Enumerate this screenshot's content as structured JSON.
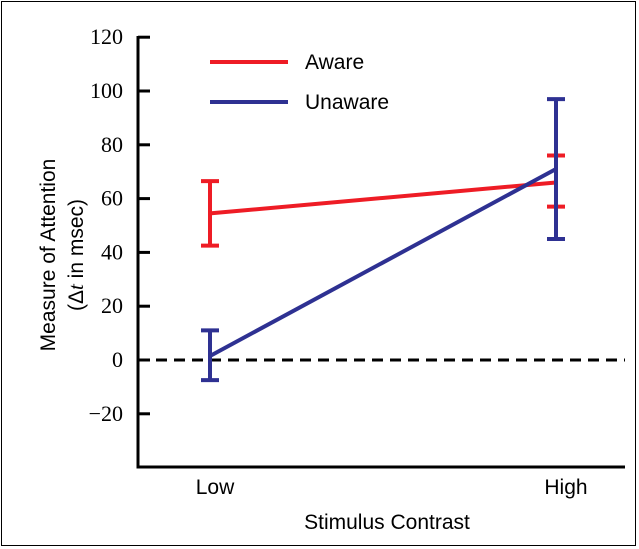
{
  "chart_data": {
    "type": "line",
    "title": "",
    "xlabel": "Stimulus Contrast",
    "ylabel_line1": "Measure of Attention",
    "ylabel_line2_prefix": "(",
    "ylabel_line2_delta": "Δ",
    "ylabel_line2_t": "t",
    "ylabel_line2_suffix": " in msec)",
    "categories": [
      "Low",
      "High"
    ],
    "ylim": [
      -40,
      120
    ],
    "yticks": [
      120,
      100,
      80,
      60,
      40,
      20,
      0,
      -20
    ],
    "ytick_labels": [
      "120",
      "100",
      "80",
      "60",
      "40",
      "20",
      "0",
      "−20"
    ],
    "reference_line": {
      "y": 0,
      "style": "dashed",
      "color": "#000000"
    },
    "legend_position": "top-left",
    "grid": false,
    "series": [
      {
        "name": "Aware",
        "color": "#ee1c25",
        "values": [
          54.5,
          66
        ],
        "err_low": [
          42.5,
          57
        ],
        "err_high": [
          66.5,
          76
        ]
      },
      {
        "name": "Unaware",
        "color": "#2e3192",
        "values": [
          1.5,
          71
        ],
        "err_low": [
          -7.5,
          45
        ],
        "err_high": [
          11,
          97
        ]
      }
    ]
  }
}
